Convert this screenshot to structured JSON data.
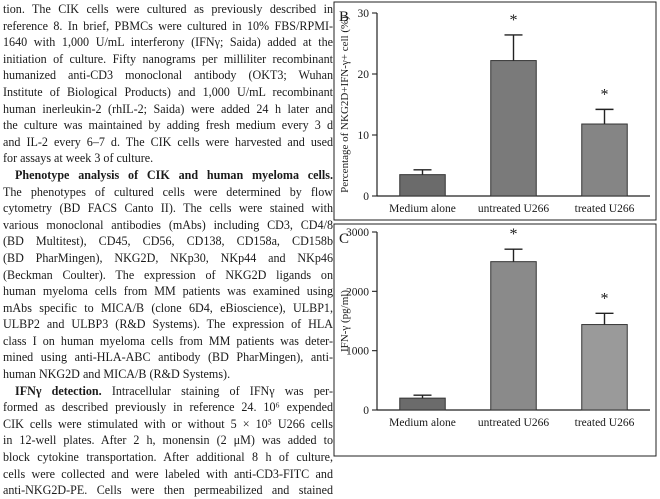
{
  "paper": {
    "lines": [
      {
        "text": "tion. The CIK cells were cultured as previously described in"
      },
      {
        "text": "reference 8. In brief, PBMCs were cultured in 10% FBS/RPMI-"
      },
      {
        "text": "1640 with 1,000 U/mL interferony (IFNγ; Saida) added at the"
      },
      {
        "text": "initiation of culture. Fifty nanograms per milliliter recombinant"
      },
      {
        "text": "humanized anti-CD3 monoclonal antibody (OKT3; Wuhan"
      },
      {
        "text": "Institute of Biological Products) and 1,000 U/mL recombinant"
      },
      {
        "text": "human inerleukin-2 (rhIL-2; Saida) were added 24 h later and"
      },
      {
        "text": "the culture was maintained by adding fresh medium every 3 d"
      },
      {
        "text": "and IL-2 every 6–7 d. The CIK cells were harvested and used"
      },
      {
        "text": "for assays at week 3 of culture.",
        "last": true
      },
      {
        "head": "Phenotype analysis of CIK and human myeloma cells.",
        "indent": true
      },
      {
        "text": "The phenotypes of cultured cells were determined by flow"
      },
      {
        "text": "cytometry (BD FACS Canto II). The cells were stained with"
      },
      {
        "text": "various monoclonal antibodies (mAbs) including CD3, CD4/8"
      },
      {
        "text": "(BD Multitest), CD45, CD56, CD138, CD158a, CD158b"
      },
      {
        "text": "(BD PharMingen), NKG2D, NKp30, NKp44 and NKp46"
      },
      {
        "text": "(Beckman Coulter). The expression of NKG2D ligands on"
      },
      {
        "text": "human myeloma cells from MM patients was examined using"
      },
      {
        "text": "mAbs specific to MICA/B (clone 6D4, eBioscience), ULBP1,"
      },
      {
        "text": "ULBP2 and ULBP3 (R&D Systems). The expression of HLA"
      },
      {
        "text": "class I on human myeloma cells from MM patients was deter-"
      },
      {
        "text": "mined using anti-HLA-ABC antibody (BD PharMingen), anti-"
      },
      {
        "text": "human NKG2D and MICA/B (R&D Systems).",
        "last": true
      },
      {
        "head": "IFNγ detection.",
        "text": " Intracellular staining of IFNγ was per-",
        "indent": true
      },
      {
        "text": "formed as described previously in reference 24. 10⁶ expended"
      },
      {
        "text": "CIK cells were stimulated with or without 5 × 10⁵ U266 cells"
      },
      {
        "text": "in 12-well plates. After 2 h, monensin (2 μM) was added to"
      },
      {
        "text": "block cytokine transportation. After additional 8 h of culture,"
      },
      {
        "text": "cells were collected and were labeled with anti-CD3-FITC and"
      },
      {
        "text": "anti-NKG2D-PE. Cells were then permeabilized and stained"
      }
    ]
  },
  "chart_data": [
    {
      "type": "bar",
      "panel_label": "B",
      "title": "",
      "xlabel": "",
      "ylabel": "Percentage of NKG2D+IFN-γ+ cell (%)",
      "categories": [
        "Medium alone",
        "untreated U266",
        "treated U266"
      ],
      "values": [
        3.5,
        22.2,
        11.8
      ],
      "error": [
        0.8,
        4.2,
        2.4
      ],
      "significance": [
        "",
        "*",
        "*"
      ],
      "ylim": [
        0,
        30
      ],
      "yticks": [
        0,
        10,
        20,
        30
      ],
      "bar_fills": [
        "#6b6b6b",
        "#7a7a7a",
        "#858585"
      ]
    },
    {
      "type": "bar",
      "panel_label": "C",
      "title": "",
      "xlabel": "",
      "ylabel": "IFN-γ (pg/ml)",
      "categories": [
        "Medium alone",
        "untreated U266",
        "treated U266"
      ],
      "values": [
        200,
        2500,
        1440
      ],
      "error": [
        50,
        210,
        190
      ],
      "significance": [
        "",
        "*",
        "*"
      ],
      "ylim": [
        0,
        3000
      ],
      "yticks": [
        0,
        1000,
        2000,
        3000
      ],
      "bar_fills": [
        "#6b6b6b",
        "#8a8a8a",
        "#9a9a9a"
      ]
    }
  ]
}
